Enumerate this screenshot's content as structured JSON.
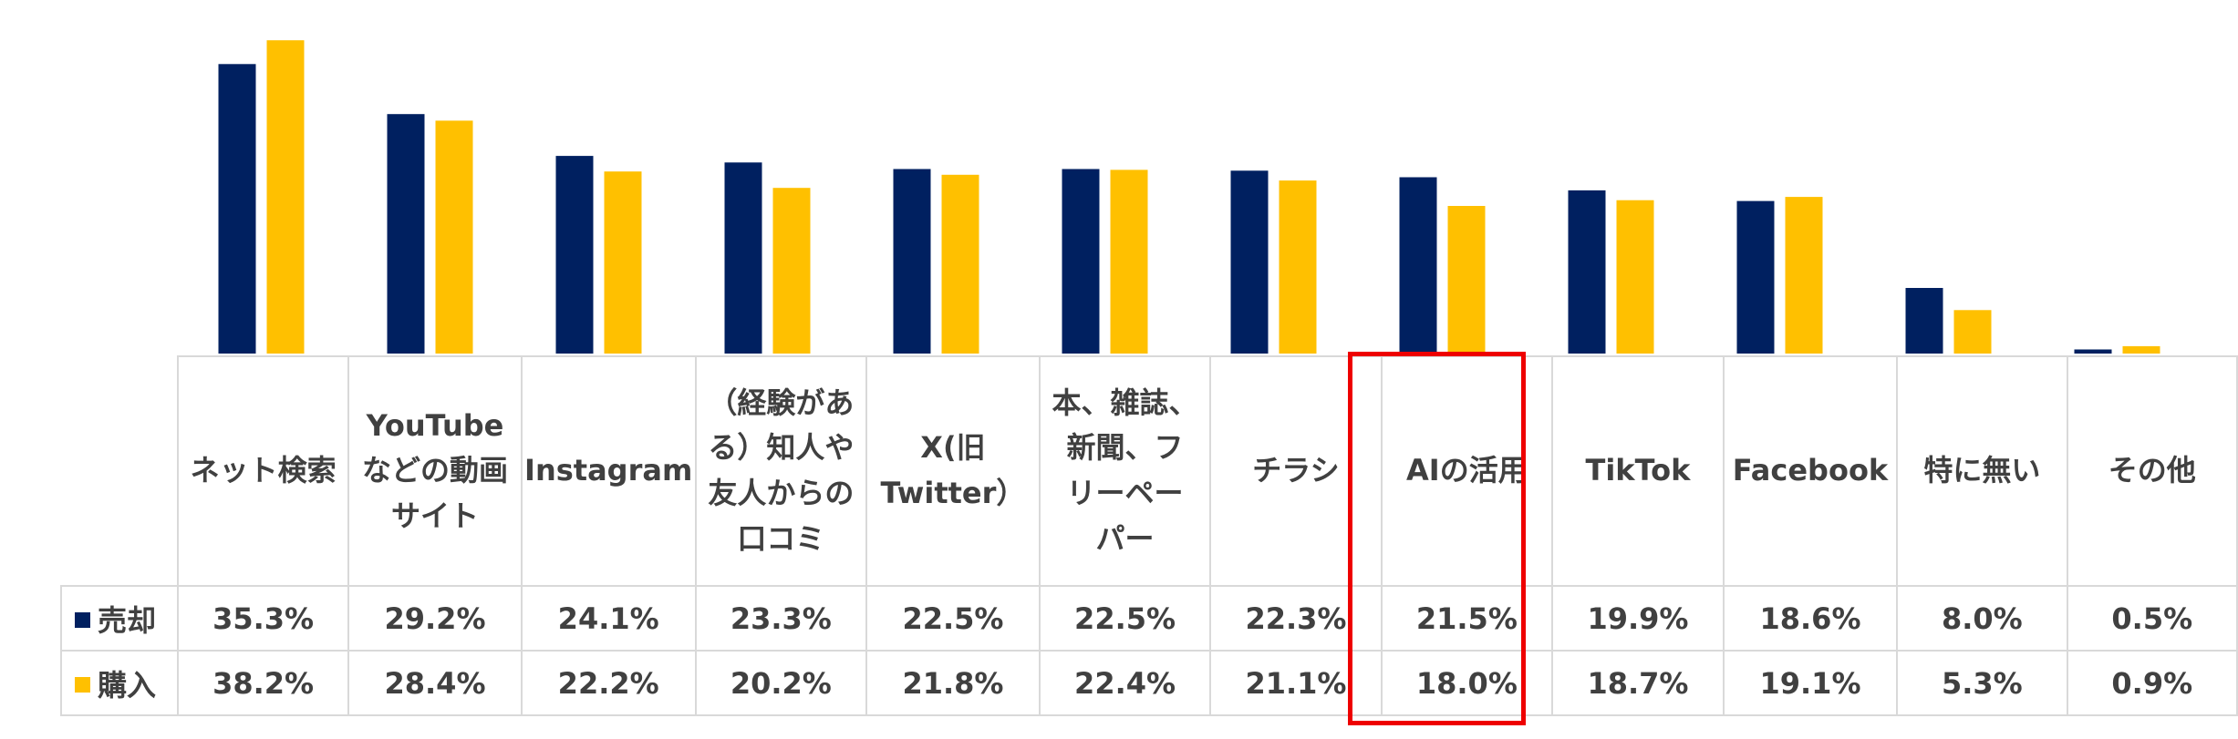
{
  "chart_data": {
    "type": "bar",
    "categories": [
      "ネット検索",
      "YouTubeなどの動画サイト",
      "Instagram",
      "（経験がある）知人や友人からの口コミ",
      "X(旧Twitter）",
      "本、雑誌、新聞、フリーペーパー",
      "チラシ",
      "AIの活用",
      "TikTok",
      "Facebook",
      "特に無い",
      "その他"
    ],
    "category_lines": [
      [
        "ネット検索"
      ],
      [
        "YouTube",
        "などの動画",
        "サイト"
      ],
      [
        "Instagram"
      ],
      [
        "（経験があ",
        "る）知人や",
        "友人からの",
        "口コミ"
      ],
      [
        "X(旧",
        "Twitter）"
      ],
      [
        "本、雑誌、",
        "新聞、フ",
        "リーペー",
        "パー"
      ],
      [
        "チラシ"
      ],
      [
        "AIの活用"
      ],
      [
        "TikTok"
      ],
      [
        "Facebook"
      ],
      [
        "特に無い"
      ],
      [
        "その他"
      ]
    ],
    "series": [
      {
        "name": "売却",
        "color": "#002060",
        "values": [
          35.3,
          29.2,
          24.1,
          23.3,
          22.5,
          22.5,
          22.3,
          21.5,
          19.9,
          18.6,
          8.0,
          0.5
        ],
        "labels": [
          "35.3%",
          "29.2%",
          "24.1%",
          "23.3%",
          "22.5%",
          "22.5%",
          "22.3%",
          "21.5%",
          "19.9%",
          "18.6%",
          "8.0%",
          "0.5%"
        ]
      },
      {
        "name": "購入",
        "color": "#ffc000",
        "values": [
          38.2,
          28.4,
          22.2,
          20.2,
          21.8,
          22.4,
          21.1,
          18.0,
          18.7,
          19.1,
          5.3,
          0.9
        ],
        "labels": [
          "38.2%",
          "28.4%",
          "22.2%",
          "20.2%",
          "21.8%",
          "22.4%",
          "21.1%",
          "18.0%",
          "18.7%",
          "19.1%",
          "5.3%",
          "0.9%"
        ]
      }
    ],
    "ylim": [
      0,
      40
    ],
    "grid": false,
    "legend": "data-table-left",
    "highlight_category": "AIの活用",
    "highlight_color": "#ee0000"
  }
}
